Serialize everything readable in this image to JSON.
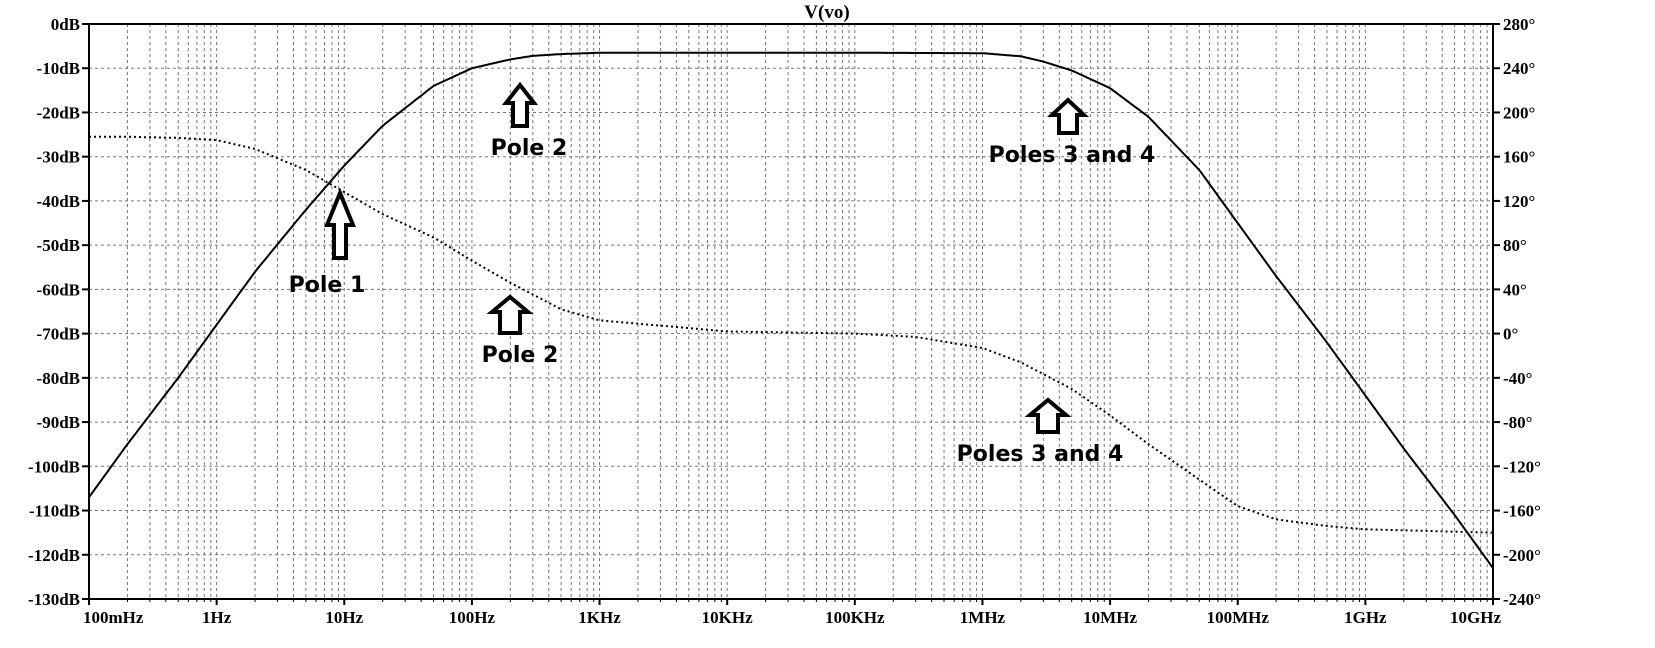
{
  "chart_data": {
    "type": "line",
    "title": "V(vo)",
    "xscale": "log",
    "xlim_hz": [
      0.1,
      10000000000
    ],
    "x_tick_labels": [
      "100mHz",
      "1Hz",
      "10Hz",
      "100Hz",
      "1KHz",
      "10KHz",
      "100KHz",
      "1MHz",
      "10MHz",
      "100MHz",
      "1GHz",
      "10GHz"
    ],
    "ylim_left_db": [
      -130,
      0
    ],
    "y_tick_labels_left": [
      "0dB",
      "-10dB",
      "-20dB",
      "-30dB",
      "-40dB",
      "-50dB",
      "-60dB",
      "-70dB",
      "-80dB",
      "-90dB",
      "-100dB",
      "-110dB",
      "-120dB",
      "-130dB"
    ],
    "ylim_right_deg": [
      -240,
      280
    ],
    "y_tick_labels_right": [
      "280°",
      "240°",
      "200°",
      "160°",
      "120°",
      "80°",
      "40°",
      "0°",
      "-40°",
      "-80°",
      "-120°",
      "-160°",
      "-200°",
      "-240°"
    ],
    "grid": true,
    "series": [
      {
        "style": "solid",
        "axis": "left",
        "x": [
          0.1,
          0.2,
          0.5,
          1,
          2,
          5,
          10,
          20,
          50,
          100,
          200,
          300,
          500,
          1000,
          10000,
          100000,
          1000000,
          2000000,
          3000000,
          5000000,
          10000000,
          20000000,
          50000000,
          100000000,
          200000000,
          500000000,
          1000000000,
          2000000000,
          5000000000,
          10000000000
        ],
        "y": [
          -107,
          -95,
          -80,
          -68,
          -56,
          -42,
          -32,
          -23,
          -14,
          -10,
          -8,
          -7.2,
          -6.8,
          -6.5,
          -6.5,
          -6.5,
          -6.6,
          -7.3,
          -8.5,
          -10.5,
          -14.5,
          -21,
          -33,
          -45,
          -57,
          -72,
          -84,
          -96,
          -111,
          -123
        ]
      },
      {
        "style": "dotted",
        "axis": "right",
        "x": [
          0.1,
          0.2,
          0.5,
          1,
          2,
          5,
          10,
          20,
          50,
          100,
          200,
          500,
          1000,
          10000,
          100000,
          300000,
          1000000,
          2000000,
          5000000,
          10000000,
          20000000,
          50000000,
          100000000,
          200000000,
          500000000,
          1000000000,
          10000000000
        ],
        "y": [
          178,
          178,
          177,
          175,
          167,
          148,
          128,
          108,
          87,
          66,
          46,
          22,
          12,
          2,
          0,
          -3,
          -13,
          -26,
          -50,
          -74,
          -100,
          -132,
          -156,
          -168,
          -174,
          -177,
          -180
        ]
      }
    ],
    "annotations": [
      "Pole 1",
      "Pole 2",
      "Pole 2",
      "Poles 3 and 4",
      "Poles 3 and 4"
    ]
  }
}
